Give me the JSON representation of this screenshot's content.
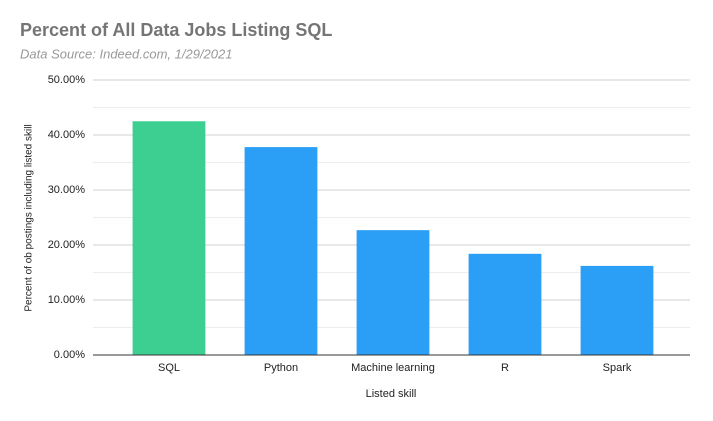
{
  "chart_data": {
    "type": "bar",
    "title": "Percent of All Data Jobs Listing SQL",
    "subtitle": "Data Source: Indeed.com, 1/29/2021",
    "x_label": "Listed skill",
    "y_label": "Percent of ob postings including listed skill",
    "categories": [
      "SQL",
      "Python",
      "Machine learning",
      "R",
      "Spark"
    ],
    "values": [
      42.5,
      37.8,
      22.7,
      18.4,
      16.2
    ],
    "colors": [
      "#3ccf91",
      "#2b9ff5",
      "#2b9ff5",
      "#2b9ff5",
      "#2b9ff5"
    ],
    "ylim": [
      0,
      50
    ],
    "yticks": [
      {
        "value": 0,
        "label": "0.00%"
      },
      {
        "value": 10,
        "label": "10.00%"
      },
      {
        "value": 20,
        "label": "20.00%"
      },
      {
        "value": 30,
        "label": "30.00%"
      },
      {
        "value": 40,
        "label": "40.00%"
      },
      {
        "value": 50,
        "label": "50.00%"
      }
    ],
    "minor_yticks": [
      5,
      15,
      25,
      35,
      45
    ],
    "grid": true
  }
}
